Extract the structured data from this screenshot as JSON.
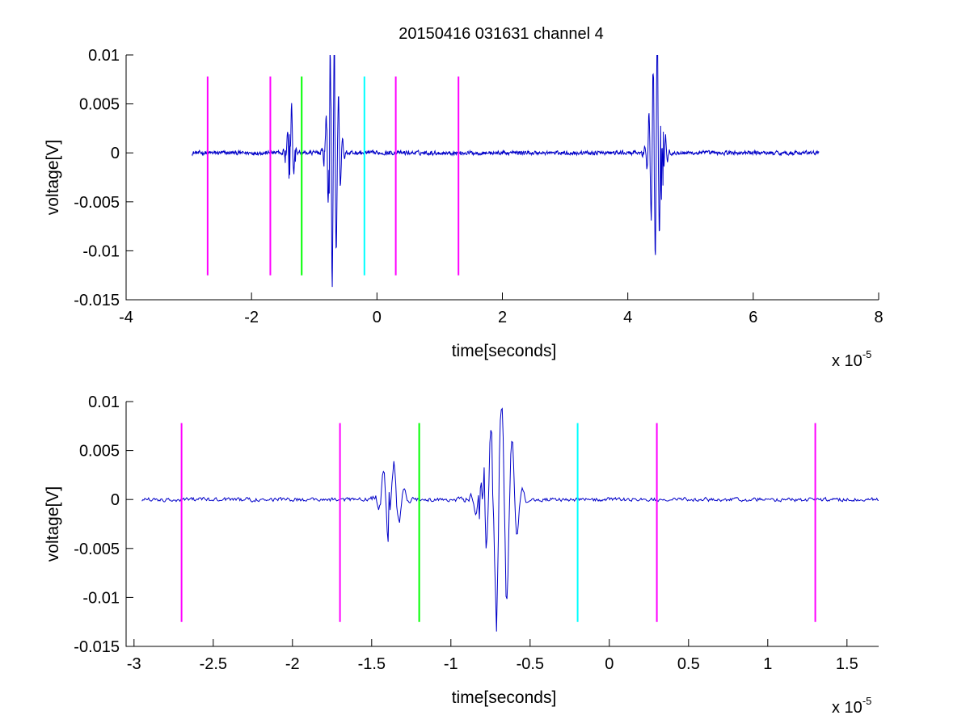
{
  "figure_title": "20150416 031631 channel 4",
  "colors": {
    "trace": "#0000c8",
    "magenta": "#ff00ff",
    "green": "#00ff00",
    "cyan": "#00ffff",
    "axis": "#000000"
  },
  "chart_data": [
    {
      "type": "line",
      "name": "full-trace",
      "title": "20150416 031631 channel 4",
      "xlabel": "time[seconds]",
      "ylabel": "voltage[V]",
      "x_exponent_base": "x 10",
      "x_exponent_power": "-5",
      "x_scale": 1e-05,
      "xlim": [
        -4,
        8
      ],
      "ylim": [
        -0.015,
        0.01
      ],
      "xticks": [
        -4,
        -2,
        0,
        2,
        4,
        6,
        8
      ],
      "xtick_labels": [
        "-4",
        "-2",
        "0",
        "2",
        "4",
        "6",
        "8"
      ],
      "yticks": [
        -0.015,
        -0.01,
        -0.005,
        0,
        0.005,
        0.01
      ],
      "ytick_labels": [
        "-0.015",
        "-0.01",
        "-0.005",
        "0",
        "0.005",
        "0.01"
      ],
      "grid": false,
      "trace": {
        "x_range": [
          -2.95,
          7.05
        ],
        "baseline_noise": 0.0003,
        "bursts": [
          {
            "center": -1.38,
            "amp": 0.004,
            "width": 0.12
          },
          {
            "center": -0.7,
            "amp": 0.011,
            "width": 0.18
          },
          {
            "center": 4.45,
            "amp": 0.01,
            "width": 0.2
          }
        ]
      },
      "markers": [
        {
          "x": -2.7,
          "color": "magenta",
          "ymin": -0.0125,
          "ymax": 0.0078
        },
        {
          "x": -1.7,
          "color": "magenta",
          "ymin": -0.0125,
          "ymax": 0.0078
        },
        {
          "x": -1.2,
          "color": "green",
          "ymin": -0.0125,
          "ymax": 0.0078
        },
        {
          "x": -0.2,
          "color": "cyan",
          "ymin": -0.0125,
          "ymax": 0.0078
        },
        {
          "x": 0.3,
          "color": "magenta",
          "ymin": -0.0125,
          "ymax": 0.0078
        },
        {
          "x": 1.3,
          "color": "magenta",
          "ymin": -0.0125,
          "ymax": 0.0078
        }
      ]
    },
    {
      "type": "line",
      "name": "zoomed-trace",
      "title": "",
      "xlabel": "time[seconds]",
      "ylabel": "voltage[V]",
      "x_exponent_base": "x 10",
      "x_exponent_power": "-5",
      "x_scale": 1e-05,
      "xlim": [
        -3.05,
        1.7
      ],
      "ylim": [
        -0.015,
        0.01
      ],
      "xticks": [
        -3,
        -2.5,
        -2,
        -1.5,
        -1,
        -0.5,
        0,
        0.5,
        1,
        1.5
      ],
      "xtick_labels": [
        "-3",
        "-2.5",
        "-2",
        "-1.5",
        "-1",
        "-0.5",
        "0",
        "0.5",
        "1",
        "1.5"
      ],
      "yticks": [
        -0.015,
        -0.01,
        -0.005,
        0,
        0.005,
        0.01
      ],
      "ytick_labels": [
        "-0.015",
        "-0.01",
        "-0.005",
        "0",
        "0.005",
        "0.01"
      ],
      "grid": false,
      "trace": {
        "x_range": [
          -2.95,
          1.7
        ],
        "baseline_noise": 0.0003,
        "bursts": [
          {
            "center": -1.38,
            "amp": 0.004,
            "width": 0.12
          },
          {
            "center": -0.7,
            "amp": 0.011,
            "width": 0.18
          }
        ]
      },
      "markers": [
        {
          "x": -2.7,
          "color": "magenta",
          "ymin": -0.0125,
          "ymax": 0.0078
        },
        {
          "x": -1.7,
          "color": "magenta",
          "ymin": -0.0125,
          "ymax": 0.0078
        },
        {
          "x": -1.2,
          "color": "green",
          "ymin": -0.0125,
          "ymax": 0.0078
        },
        {
          "x": -0.2,
          "color": "cyan",
          "ymin": -0.0125,
          "ymax": 0.0078
        },
        {
          "x": 0.3,
          "color": "magenta",
          "ymin": -0.0125,
          "ymax": 0.0078
        },
        {
          "x": 1.3,
          "color": "magenta",
          "ymin": -0.0125,
          "ymax": 0.0078
        }
      ]
    }
  ]
}
